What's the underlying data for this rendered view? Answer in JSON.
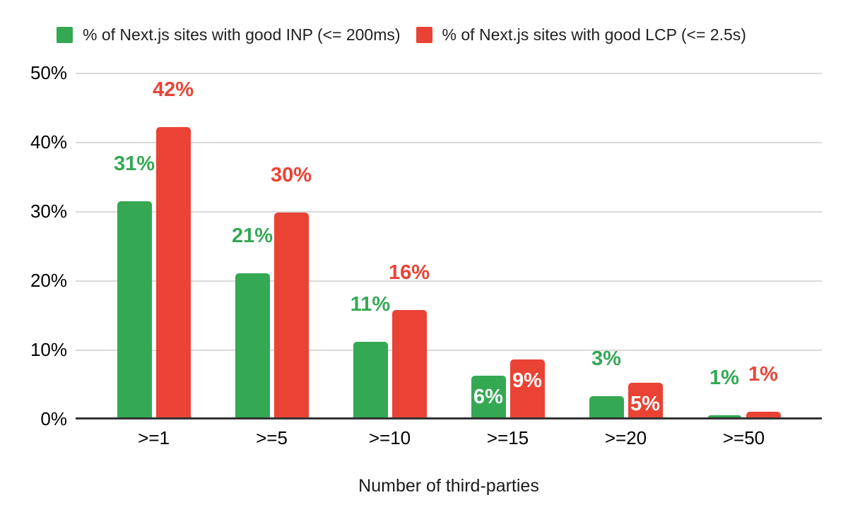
{
  "colors": {
    "inp_green": "#34a853",
    "lcp_red": "#ea4335",
    "gridline": "#d9d9d9",
    "axis_line": "#333333",
    "text": "#000000",
    "inside_label": "#ffffff"
  },
  "legend": {
    "items": [
      {
        "label": "% of Next.js sites with good INP (<= 200ms)",
        "color": "#34a853"
      },
      {
        "label": "% of Next.js sites with good LCP (<= 2.5s)",
        "color": "#ea4335"
      }
    ]
  },
  "chart_data": {
    "type": "bar",
    "title": "",
    "xlabel": "Number of third-parties",
    "ylabel": "",
    "ylim": [
      0,
      50
    ],
    "grid": true,
    "legend_position": "top",
    "categories": [
      ">=1",
      ">=5",
      ">=10",
      ">=15",
      ">=20",
      ">=50"
    ],
    "yticks": [
      {
        "label": "0%",
        "value": 0
      },
      {
        "label": "10%",
        "value": 10
      },
      {
        "label": "20%",
        "value": 20
      },
      {
        "label": "30%",
        "value": 30
      },
      {
        "label": "40%",
        "value": 40
      },
      {
        "label": "50%",
        "value": 50
      }
    ],
    "series": [
      {
        "name": "% of Next.js sites with good INP (<= 200ms)",
        "key": "inp",
        "color": "#34a853",
        "values": [
          31,
          21,
          11,
          6,
          3,
          1
        ],
        "labels": [
          "31%",
          "21%",
          "11%",
          "6%",
          "3%",
          "1%"
        ],
        "label_positions": [
          "above",
          "above",
          "above",
          "inside",
          "above",
          "above"
        ],
        "bar_heights_pct": [
          31.4,
          21.0,
          11.1,
          6.2,
          3.3,
          0.5
        ]
      },
      {
        "name": "% of Next.js sites with good LCP (<= 2.5s)",
        "key": "lcp",
        "color": "#ea4335",
        "values": [
          42,
          30,
          16,
          9,
          5,
          1
        ],
        "labels": [
          "42%",
          "30%",
          "16%",
          "9%",
          "5%",
          "1%"
        ],
        "label_positions": [
          "above",
          "above",
          "above",
          "inside",
          "inside",
          "above"
        ],
        "bar_heights_pct": [
          42.1,
          29.8,
          15.7,
          8.6,
          5.2,
          1.0
        ]
      }
    ]
  }
}
